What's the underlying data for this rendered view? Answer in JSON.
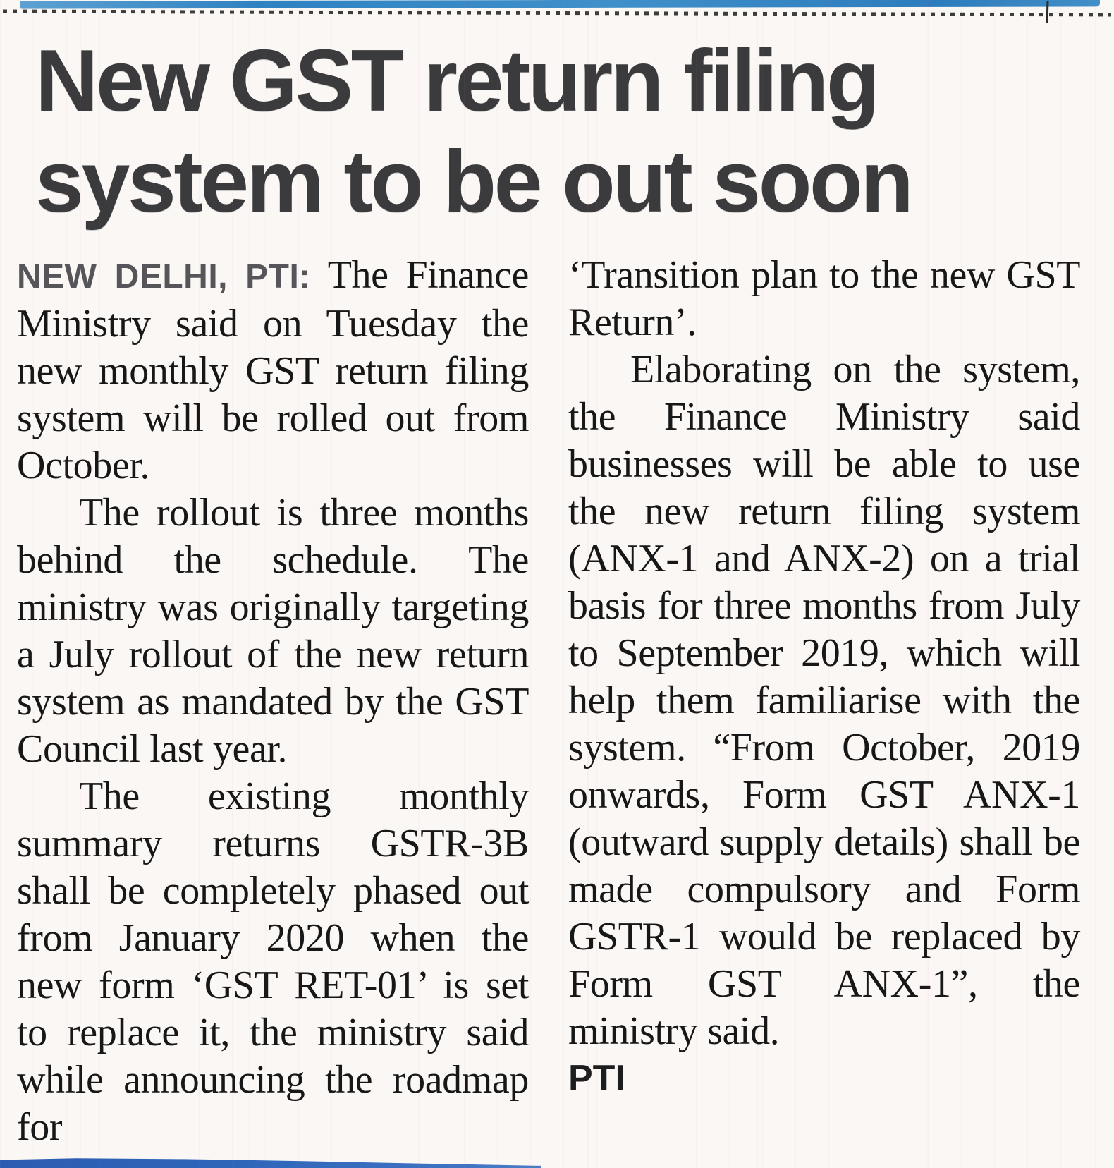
{
  "article": {
    "headline": {
      "line1": "New GST return filing",
      "line2": "system to be out soon"
    },
    "dateline": "NEW DELHI, PTI:",
    "columns": {
      "left": [
        {
          "text": "The Finance Ministry said on Tuesday the new monthly GST return filing system will be rolled out from October."
        },
        {
          "text": "The rollout is three months behind the schedule. The ministry was originally targeting a July rollout of the new return system as mandated by the GST Council last year."
        },
        {
          "text": "The existing monthly summary returns GSTR-3B shall be completely phased out from January 2020 when the new form ‘GST RET-01’ is set to replace it, the ministry said while announcing the roadmap for"
        }
      ],
      "right": [
        {
          "text": "‘Transition plan to the new GST Return’."
        },
        {
          "text": "Elaborating on the system, the Finance Ministry said businesses will be able to use the new return filing system (ANX-1 and ANX-2) on a trial basis for three months from July to September 2019, which will help them familiarise with the system. “From October, 2019 onwards, Form GST ANX-1 (outward supply details) shall be made compulsory and Form GSTR-1 would be replaced by Form GST ANX-1”, the ministry said."
        }
      ]
    },
    "byline": "PTI"
  },
  "artifact_colors": {
    "top_strip_blue": "#3487c5",
    "bottom_strip_blue": "#2e62b6",
    "headline_ink": "#3b3b3e",
    "body_ink": "#171717",
    "paper": "#faf7f4"
  }
}
